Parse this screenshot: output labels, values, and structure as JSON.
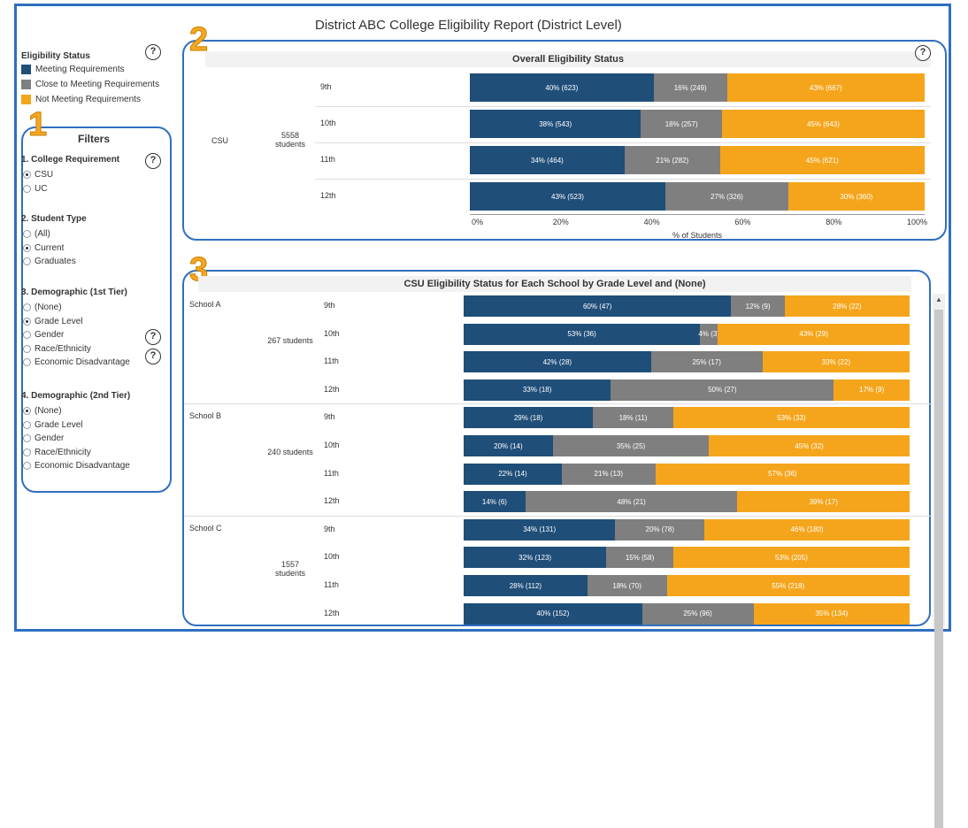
{
  "report": {
    "title": "District ABC College Eligibility Report (District Level)"
  },
  "callouts": [
    "1",
    "2",
    "3"
  ],
  "legend": {
    "title": "Eligibility Status",
    "items": [
      {
        "label": "Meeting Requirements",
        "color": "#1f4e79"
      },
      {
        "label": "Close to Meeting Requirements",
        "color": "#7f7f7f"
      },
      {
        "label": "Not Meeting Requirements",
        "color": "#f5a51b"
      }
    ]
  },
  "filters": {
    "title": "Filters",
    "groups": [
      {
        "title": "1. College Requirement",
        "options": [
          {
            "label": "CSU",
            "selected": true
          },
          {
            "label": "UC",
            "selected": false
          }
        ]
      },
      {
        "title": "2. Student Type",
        "options": [
          {
            "label": "(All)",
            "selected": false
          },
          {
            "label": "Current",
            "selected": true
          },
          {
            "label": "Graduates",
            "selected": false
          }
        ]
      },
      {
        "title": "3. Demographic (1st Tier)",
        "options": [
          {
            "label": "(None)",
            "selected": false
          },
          {
            "label": "Grade Level",
            "selected": true
          },
          {
            "label": "Gender",
            "selected": false
          },
          {
            "label": "Race/Ethnicity",
            "selected": false
          },
          {
            "label": "Economic Disadvantage",
            "selected": false
          }
        ]
      },
      {
        "title": "4. Demographic (2nd Tier)",
        "options": [
          {
            "label": "(None)",
            "selected": true
          },
          {
            "label": "Grade Level",
            "selected": false
          },
          {
            "label": "Gender",
            "selected": false
          },
          {
            "label": "Race/Ethnicity",
            "selected": false
          },
          {
            "label": "Economic Disadvantage",
            "selected": false
          }
        ]
      }
    ]
  },
  "help_icon": "question-speech-bubble-icon",
  "chart_data": [
    {
      "type": "bar",
      "title": "Overall Eligibility Status",
      "group": "CSU",
      "students": "5558 students",
      "xlabel": "% of Students",
      "xlim": [
        0,
        100
      ],
      "ticks": [
        "0%",
        "20%",
        "40%",
        "60%",
        "80%",
        "100%"
      ],
      "categories": [
        "9th",
        "10th",
        "11th",
        "12th"
      ],
      "series": [
        {
          "name": "Meeting Requirements",
          "values": [
            40,
            38,
            34,
            43
          ],
          "labels": [
            "40% (623)",
            "38% (543)",
            "34% (464)",
            "43% (523)"
          ]
        },
        {
          "name": "Close to Meeting Requirements",
          "values": [
            16,
            18,
            21,
            27
          ],
          "labels": [
            "16% (249)",
            "18% (257)",
            "21% (282)",
            "27% (326)"
          ]
        },
        {
          "name": "Not Meeting Requirements",
          "values": [
            43,
            45,
            45,
            30
          ],
          "labels": [
            "43% (667)",
            "45% (643)",
            "45% (621)",
            "30% (360)"
          ]
        }
      ]
    },
    {
      "type": "bar",
      "title": "CSU Eligibility Status for Each School by Grade Level and (None)",
      "schools": [
        {
          "name": "School A",
          "students": "267 students",
          "categories": [
            "9th",
            "10th",
            "11th",
            "12th"
          ],
          "series": [
            {
              "name": "Meeting Requirements",
              "values": [
                60,
                53,
                42,
                33
              ],
              "labels": [
                "60% (47)",
                "53% (36)",
                "42% (28)",
                "33% (18)"
              ]
            },
            {
              "name": "Close to Meeting Requirements",
              "values": [
                12,
                4,
                25,
                50
              ],
              "labels": [
                "12% (9)",
                "4% (3)",
                "25% (17)",
                "50% (27)"
              ]
            },
            {
              "name": "Not Meeting Requirements",
              "values": [
                28,
                43,
                33,
                17
              ],
              "labels": [
                "28% (22)",
                "43% (29)",
                "33% (22)",
                "17% (9)"
              ]
            }
          ]
        },
        {
          "name": "School B",
          "students": "240 students",
          "categories": [
            "9th",
            "10th",
            "11th",
            "12th"
          ],
          "series": [
            {
              "name": "Meeting Requirements",
              "values": [
                29,
                20,
                22,
                14
              ],
              "labels": [
                "29% (18)",
                "20% (14)",
                "22% (14)",
                "14% (6)"
              ]
            },
            {
              "name": "Close to Meeting Requirements",
              "values": [
                18,
                35,
                21,
                48
              ],
              "labels": [
                "18% (11)",
                "35% (25)",
                "21% (13)",
                "48% (21)"
              ]
            },
            {
              "name": "Not Meeting Requirements",
              "values": [
                53,
                45,
                57,
                39
              ],
              "labels": [
                "53% (33)",
                "45% (32)",
                "57% (36)",
                "39% (17)"
              ]
            }
          ]
        },
        {
          "name": "School C",
          "students": "1557 students",
          "categories": [
            "9th",
            "10th",
            "11th",
            "12th"
          ],
          "series": [
            {
              "name": "Meeting Requirements",
              "values": [
                34,
                32,
                28,
                40
              ],
              "labels": [
                "34% (131)",
                "32% (123)",
                "28% (112)",
                "40% (152)"
              ]
            },
            {
              "name": "Close to Meeting Requirements",
              "values": [
                20,
                15,
                18,
                25
              ],
              "labels": [
                "20% (78)",
                "15% (58)",
                "18% (70)",
                "25% (96)"
              ]
            },
            {
              "name": "Not Meeting Requirements",
              "values": [
                46,
                53,
                55,
                35
              ],
              "labels": [
                "46% (180)",
                "53% (205)",
                "55% (218)",
                "35% (134)"
              ]
            }
          ]
        }
      ]
    }
  ]
}
